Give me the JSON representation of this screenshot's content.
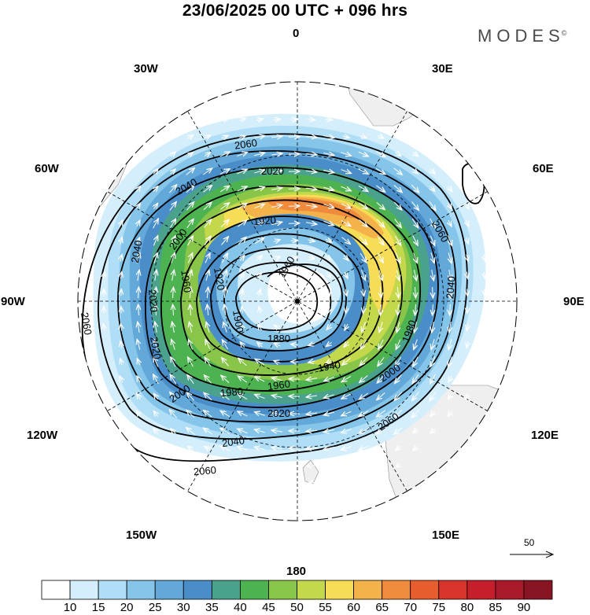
{
  "title": "23/06/2025  00 UTC  + 096 hrs",
  "brand": {
    "name": "MODES",
    "mark": "©"
  },
  "longitude_labels": {
    "lon_0": "0",
    "lon_30e": "30E",
    "lon_60e": "60E",
    "lon_90e": "90E",
    "lon_120e": "120E",
    "lon_150e": "150E",
    "lon_180": "180",
    "lon_150w": "150W",
    "lon_120w": "120W",
    "lon_90w": "90W",
    "lon_60w": "60W",
    "lon_30w": "30W"
  },
  "contour_labels": [
    "2060",
    "2040",
    "2020",
    "1920",
    "1960",
    "1920",
    "1960",
    "2060",
    "2040",
    "2060",
    "2000",
    "2040",
    "2020",
    "2020",
    "1900",
    "1880",
    "1940",
    "1980",
    "2000",
    "1980",
    "1960",
    "2040",
    "2060",
    "2060",
    "2000",
    "2020",
    "1980",
    "2040"
  ],
  "wind_reference_vector": {
    "value": "50"
  },
  "colorbar": {
    "ticks": [
      "10",
      "15",
      "20",
      "25",
      "30",
      "35",
      "40",
      "45",
      "50",
      "55",
      "60",
      "65",
      "70",
      "75",
      "80",
      "85",
      "90"
    ],
    "colors": [
      "#ffffff",
      "#d4eefb",
      "#b0def6",
      "#86c5ea",
      "#62a8d9",
      "#4a8ec9",
      "#4aa28c",
      "#4cb350",
      "#88c548",
      "#c4d84c",
      "#f7dd55",
      "#f4b24a",
      "#f08a3c",
      "#e85d2e",
      "#d9342b",
      "#c41f2a",
      "#a81a2a",
      "#8a1522"
    ]
  },
  "colors": {
    "land": "#efefef",
    "frame": "#000000"
  }
}
